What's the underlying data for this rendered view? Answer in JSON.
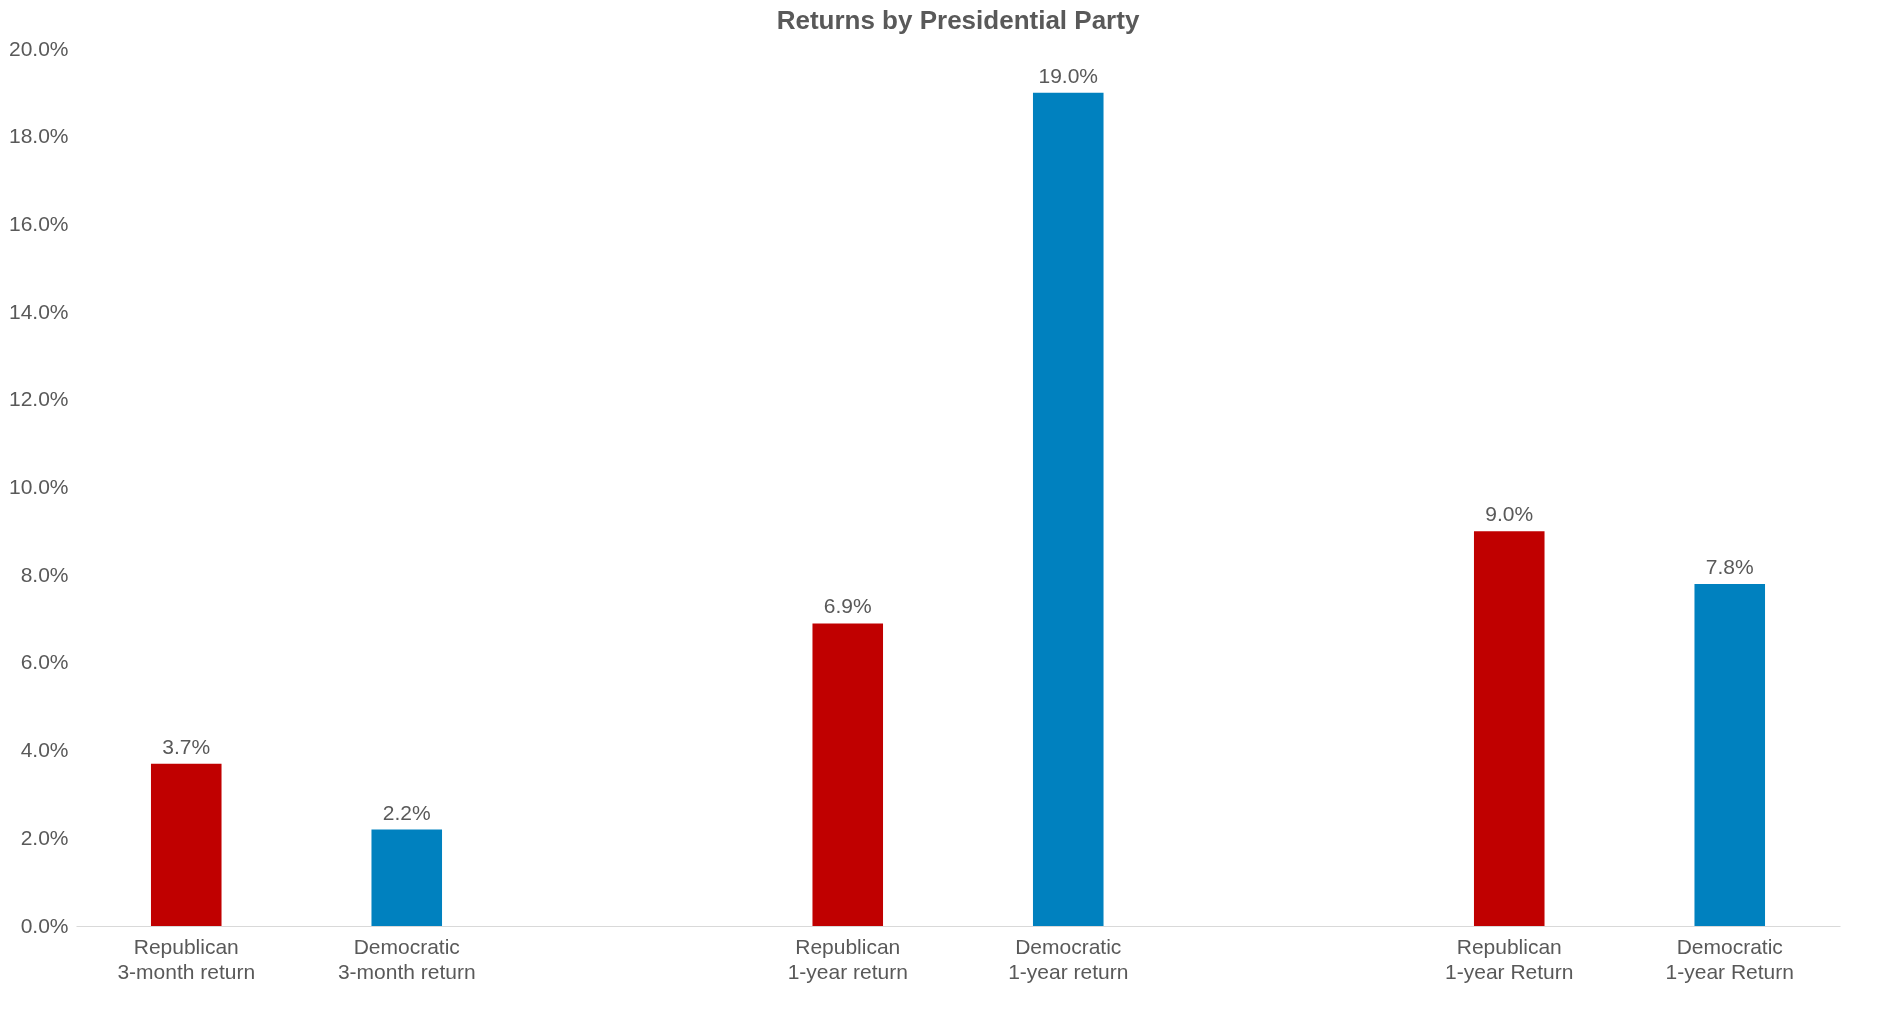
{
  "chart_data": {
    "type": "bar",
    "title": "Returns by Presidential Party",
    "categories": [
      "Republican 3-month return",
      "Democratic 3-month return",
      null,
      "Republican 1-year return",
      "Democratic 1-year return",
      null,
      "Republican 1-year Return",
      "Democratic 1-year Return"
    ],
    "values": [
      3.7,
      2.2,
      null,
      6.9,
      19.0,
      null,
      9.0,
      7.8
    ],
    "colors": [
      "#c00000",
      "#0081bf",
      null,
      "#c00000",
      "#0081bf",
      null,
      "#c00000",
      "#0081bf"
    ],
    "value_labels": [
      "3.7%",
      "2.2%",
      null,
      "6.9%",
      "19.0%",
      null,
      "9.0%",
      "7.8%"
    ],
    "ylim": [
      0,
      20
    ],
    "yticks": [
      {
        "value": 0,
        "label": "0.0%"
      },
      {
        "value": 2,
        "label": "2.0%"
      },
      {
        "value": 4,
        "label": "4.0%"
      },
      {
        "value": 6,
        "label": "6.0%"
      },
      {
        "value": 8,
        "label": "8.0%"
      },
      {
        "value": 10,
        "label": "10.0%"
      },
      {
        "value": 12,
        "label": "12.0%"
      },
      {
        "value": 14,
        "label": "14.0%"
      },
      {
        "value": 16,
        "label": "16.0%"
      },
      {
        "value": 18,
        "label": "18.0%"
      },
      {
        "value": 20,
        "label": "20.0%"
      }
    ],
    "grid": false
  }
}
